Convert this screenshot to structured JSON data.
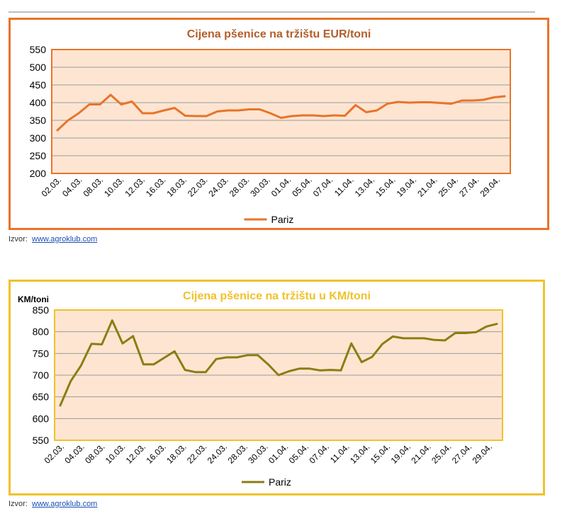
{
  "chart_data": [
    {
      "type": "line",
      "title": "Cijena pšenice na tržištu EUR/toni",
      "ylabel": "",
      "ylim": [
        200,
        550
      ],
      "yticks": [
        200,
        250,
        300,
        350,
        400,
        450,
        500,
        550
      ],
      "grid": true,
      "legend_position": "bottom",
      "colors": {
        "line": "#e8742a",
        "plot_bg": "#fde5d2",
        "frame": "#e8742a"
      },
      "x_labels": [
        "02.03.",
        "04.03.",
        "08.03.",
        "10.03.",
        "12.03.",
        "16.03.",
        "18.03.",
        "22.03.",
        "24.03.",
        "28.03.",
        "30.03.",
        "01.04.",
        "05.04.",
        "07.04.",
        "11.04.",
        "13.04.",
        "15.04.",
        "19.04.",
        "21.04.",
        "25.04.",
        "27.04.",
        "29.04."
      ],
      "series": [
        {
          "name": "Pariz",
          "values": [
            322,
            350,
            370,
            395,
            395,
            422,
            395,
            403,
            370,
            370,
            378,
            385,
            363,
            362,
            362,
            375,
            378,
            378,
            381,
            381,
            370,
            357,
            362,
            364,
            364,
            362,
            364,
            363,
            393,
            373,
            378,
            397,
            402,
            400,
            401,
            401,
            399,
            397,
            406,
            406,
            408,
            415,
            418
          ]
        }
      ]
    },
    {
      "type": "line",
      "title": "Cijena pšenice na tržištu u KM/toni",
      "ylabel": "KM/toni",
      "ylim": [
        550,
        850
      ],
      "yticks": [
        550,
        600,
        650,
        700,
        750,
        800,
        850
      ],
      "grid": true,
      "legend_position": "bottom",
      "colors": {
        "line": "#8c7d12",
        "plot_bg": "#fde5d2",
        "frame": "#f0c22a"
      },
      "x_labels": [
        "02.03.",
        "04.03.",
        "08.03.",
        "10.03.",
        "12.03.",
        "16.03.",
        "18.03.",
        "22.03.",
        "24.03.",
        "28.03.",
        "30.03.",
        "01.04.",
        "05.04.",
        "07.04.",
        "11.04.",
        "13.04.",
        "15.04.",
        "19.04.",
        "21.04.",
        "25.04.",
        "27.04.",
        "29.04."
      ],
      "series": [
        {
          "name": "Pariz",
          "values": [
            630,
            686,
            722,
            772,
            771,
            826,
            773,
            790,
            725,
            725,
            740,
            755,
            712,
            707,
            707,
            737,
            741,
            741,
            746,
            746,
            725,
            700,
            709,
            715,
            715,
            711,
            712,
            711,
            773,
            730,
            742,
            772,
            789,
            785,
            785,
            785,
            781,
            780,
            797,
            797,
            799,
            812,
            818
          ]
        }
      ]
    }
  ],
  "source": {
    "prefix": "Izvor:",
    "link": "www.agroklub.com"
  }
}
